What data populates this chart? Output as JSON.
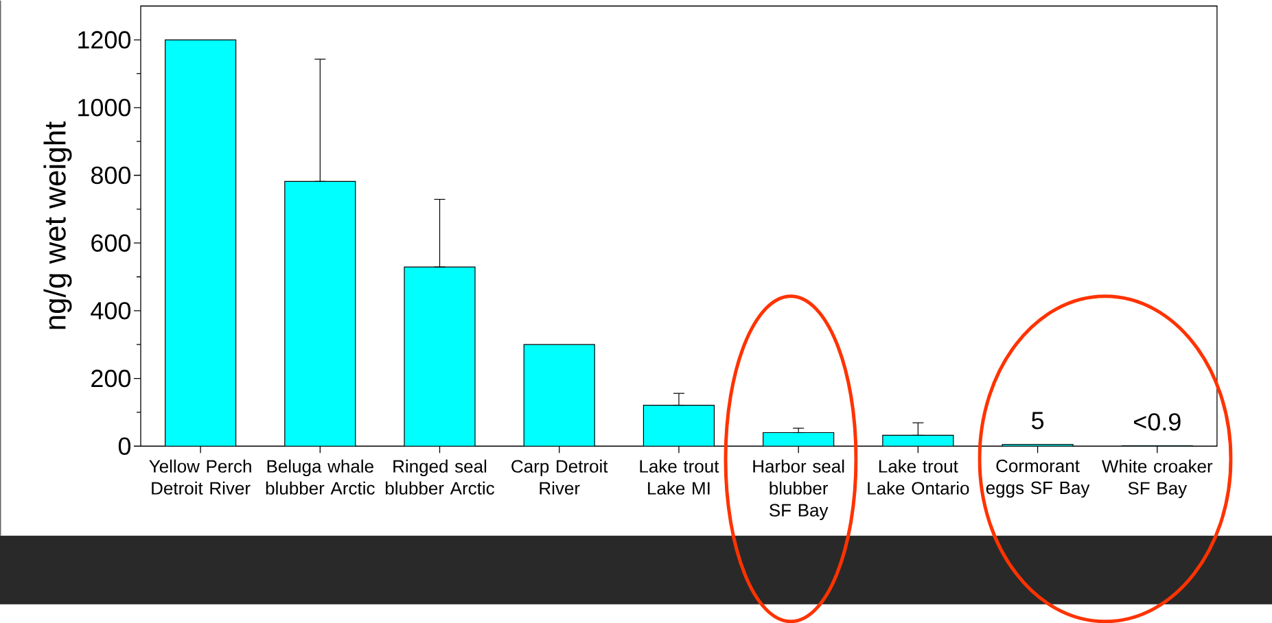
{
  "chart_data": {
    "type": "bar",
    "categories": [
      "Yellow Perch Detroit River",
      "Beluga whale blubber Arctic",
      "Ringed seal blubber Arctic",
      "Carp Detroit River",
      "Lake trout Lake MI",
      "Harbor seal blubber SF Bay",
      "Lake trout Lake Ontario",
      "Cormorant eggs SF Bay",
      "White croaker SF Bay"
    ],
    "values": [
      1200,
      782,
      529,
      300,
      121,
      40,
      32,
      5,
      0.9
    ],
    "errors": [
      null,
      [
        782,
        1143
      ],
      [
        529,
        729
      ],
      null,
      [
        121,
        156
      ],
      [
        40,
        53
      ],
      [
        32,
        69
      ],
      null,
      null
    ],
    "value_labels": [
      null,
      null,
      null,
      null,
      null,
      null,
      null,
      "5",
      "<0.9"
    ],
    "color": "#00ffff",
    "ylabel": "ng/g wet weight",
    "ylim": [
      0,
      1300
    ],
    "yticks": [
      0,
      200,
      400,
      600,
      800,
      1000,
      1200
    ]
  }
}
